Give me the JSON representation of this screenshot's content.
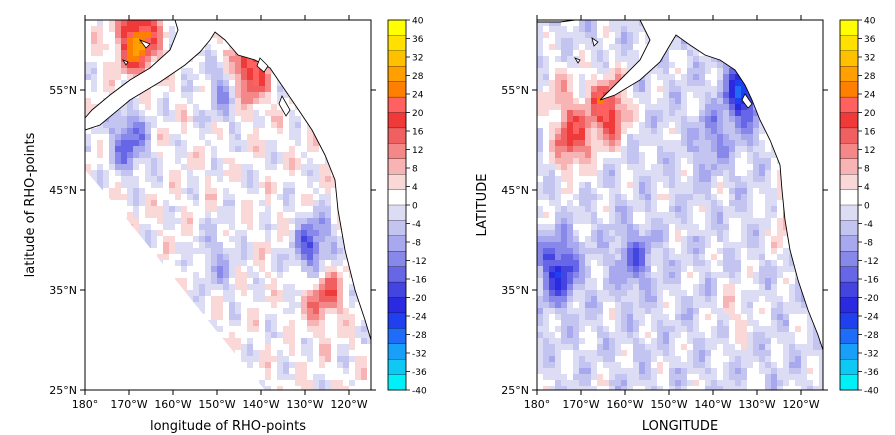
{
  "chart_data": [
    {
      "type": "heatmap",
      "xlabel": "longitude of RHO-points",
      "ylabel": "latitude of RHO-points",
      "x_ticks": [
        "180°",
        "170°W",
        "160°W",
        "150°W",
        "140°W",
        "130°W",
        "120°W"
      ],
      "x_tick_values": [
        -180,
        -170,
        -160,
        -150,
        -140,
        -130,
        -120
      ],
      "y_ticks": [
        "25°N",
        "35°N",
        "45°N",
        "55°N"
      ],
      "y_tick_values": [
        25,
        35,
        45,
        55
      ],
      "xlim": [
        -180,
        -115
      ],
      "ylim": [
        25,
        62
      ],
      "domain": "curvilinear model grid (fan-shaped wedge, land masked)",
      "features": [
        {
          "lon": -168,
          "lat": 60,
          "value": 28,
          "desc": "strong positive near Alaska Peninsula"
        },
        {
          "lon": -143,
          "lat": 57,
          "value": 24,
          "desc": "positive spot, Gulf of Alaska coast"
        },
        {
          "lon": -126,
          "lat": 35,
          "value": 16,
          "desc": "positive eddies off California"
        },
        {
          "lon": -170,
          "lat": 50,
          "value": -16,
          "desc": "negative along western grid edge"
        },
        {
          "lon": -128,
          "lat": 39,
          "value": -20,
          "desc": "negative eddies off California"
        },
        {
          "lon": -148,
          "lat": 55,
          "value": -12,
          "desc": "negative patch, Gulf of Alaska"
        },
        {
          "lon": -150,
          "lat": 38,
          "value": -8,
          "desc": "negative band along southwestern boundary"
        }
      ]
    },
    {
      "type": "heatmap",
      "xlabel": "LONGITUDE",
      "ylabel": "LATITUDE",
      "x_ticks": [
        "180°",
        "170°W",
        "160°W",
        "150°W",
        "140°W",
        "130°W",
        "120°W"
      ],
      "x_tick_values": [
        -180,
        -170,
        -160,
        -150,
        -140,
        -130,
        -120
      ],
      "y_ticks": [
        "25°N",
        "35°N",
        "45°N",
        "55°N"
      ],
      "y_tick_values": [
        25,
        35,
        45,
        55
      ],
      "xlim": [
        -180,
        -115
      ],
      "ylim": [
        25,
        62
      ],
      "domain": "full rectangular ocean area, land masked",
      "features": [
        {
          "lon": -175,
          "lat": 55,
          "value": 8,
          "desc": "positive north-western block"
        },
        {
          "lon": -164,
          "lat": 53,
          "value": 24,
          "desc": "strong positive spot near Aleutians"
        },
        {
          "lon": -172,
          "lat": 50,
          "value": 20,
          "desc": "positive spot"
        },
        {
          "lon": -133,
          "lat": 55,
          "value": -24,
          "desc": "strong negative spot near coast"
        },
        {
          "lon": -175,
          "lat": 37,
          "value": -20,
          "desc": "strong negative south-west"
        },
        {
          "lon": -158,
          "lat": 38,
          "value": -12,
          "desc": "broad negative band"
        },
        {
          "lon": -140,
          "lat": 50,
          "value": -8,
          "desc": "negative patches Gulf of Alaska"
        },
        {
          "lon": -122,
          "lat": 42,
          "value": 12,
          "desc": "positive strip along US west coast"
        },
        {
          "lon": -135,
          "lat": 33,
          "value": 6,
          "desc": "scattered positive eddies"
        }
      ]
    }
  ],
  "colorbar": {
    "ticks": [
      "40",
      "36",
      "32",
      "28",
      "24",
      "20",
      "16",
      "12",
      "8",
      "4",
      "0",
      "-4",
      "-8",
      "-12",
      "-16",
      "-20",
      "-24",
      "-28",
      "-32",
      "-36",
      "-40"
    ],
    "colors": [
      "#ffff00",
      "#ffe000",
      "#ffc000",
      "#ffa000",
      "#ff8000",
      "#ff6060",
      "#f03a3a",
      "#f06060",
      "#f48888",
      "#f8b4b4",
      "#fbd8d8",
      "#ffffff",
      "#dcdcf4",
      "#c4c4f0",
      "#a8a8ee",
      "#8888ea",
      "#6666e6",
      "#4444e0",
      "#2a2ae0",
      "#2040f0",
      "#1e6cf8",
      "#18a0f8",
      "#10c8f4",
      "#00f0f8"
    ]
  }
}
